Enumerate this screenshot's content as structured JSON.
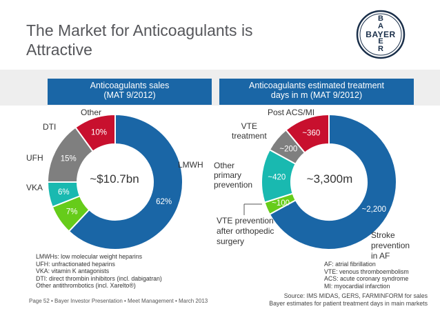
{
  "page": {
    "title_line1": "The Market for Anticoagulants is",
    "title_line2": "Attractive",
    "footer": "Page 52 • Bayer Investor Presentation • Meet Management • March 2013",
    "source_line1": "Source: IMS MIDAS, GERS, FARMINFORM for sales",
    "source_line2": "Bayer estimates for patient treatment days in  main markets",
    "logo_text": "BAYER",
    "left_notes": [
      "LMWHs: low molecular weight heparins",
      "UFH: unfractionated heparins",
      "VKA: vitamin K antagonists",
      "DTI: direct thrombin inhibitors (incl. dabigatran)",
      "Other antithrombotics (incl. Xarelto®)"
    ],
    "right_notes": [
      "AF: atrial fibrillation",
      "VTE: venous thromboembolism",
      "ACS: acute coronary syndrome",
      "MI: myocardial infarction"
    ]
  },
  "chart_data": [
    {
      "type": "pie",
      "title_line1": "Anticoagulants sales",
      "title_line2": "(MAT 9/2012)",
      "center_label": "~$10.7bn",
      "slices": [
        {
          "name": "LMWH",
          "value": 62,
          "label": "62%",
          "color": "#1a66a6"
        },
        {
          "name": "VKA",
          "value": 7,
          "label": "7%",
          "color": "#66cc1a"
        },
        {
          "name": "UFH",
          "value": 6,
          "label": "6%",
          "color": "#19b9b0"
        },
        {
          "name": "DTI",
          "value": 15,
          "label": "15%",
          "color": "#7f7f7f"
        },
        {
          "name": "Other",
          "value": 10,
          "label": "10%",
          "color": "#c8102e"
        }
      ]
    },
    {
      "type": "pie",
      "title_line1": "Anticoagulants estimated treatment",
      "title_line2": "days in m (MAT 9/2012)",
      "center_label": "~3,300m",
      "slices": [
        {
          "name": "Stroke prevention in AF",
          "name_lines": [
            "Stroke",
            "prevention",
            "in AF"
          ],
          "value": 2200,
          "label": "~2,200",
          "color": "#1a66a6"
        },
        {
          "name": "VTE prevention after orthopedic surgery",
          "name_lines": [
            "VTE prevention",
            "after orthopedic",
            "surgery"
          ],
          "value": 100,
          "label": "~100",
          "color": "#66cc1a"
        },
        {
          "name": "Other primary prevention",
          "name_lines": [
            "Other",
            "primary",
            "prevention"
          ],
          "value": 420,
          "label": "~420",
          "color": "#19b9b0"
        },
        {
          "name": "VTE treatment",
          "name_lines": [
            "VTE",
            "treatment"
          ],
          "value": 200,
          "label": "~200",
          "color": "#7f7f7f"
        },
        {
          "name": "Post ACS/MI",
          "name_lines": [
            "Post ACS/MI"
          ],
          "value": 360,
          "label": "~360",
          "color": "#c8102e"
        }
      ]
    }
  ]
}
